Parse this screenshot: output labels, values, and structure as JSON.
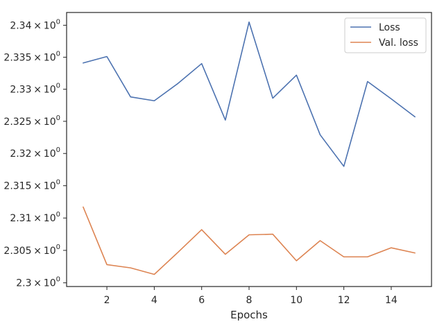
{
  "chart_data": {
    "type": "line",
    "title": "",
    "xlabel": "Epochs",
    "ylabel": "",
    "xlim": [
      0.3,
      15.7
    ],
    "ylim": [
      2.29943,
      2.342
    ],
    "y_scale": "log",
    "xticks": [
      2,
      4,
      6,
      8,
      10,
      12,
      14
    ],
    "xtick_labels": [
      "2",
      "4",
      "6",
      "8",
      "10",
      "12",
      "14"
    ],
    "yticks": [
      2.3,
      2.305,
      2.31,
      2.315,
      2.32,
      2.325,
      2.33,
      2.335,
      2.34
    ],
    "ytick_mantissas": [
      "2.3",
      "2.305",
      "2.31",
      "2.315",
      "2.32",
      "2.325",
      "2.33",
      "2.335",
      "2.34"
    ],
    "ytick_base": "10",
    "ytick_exponent": "0",
    "grid": false,
    "legend_position": "top-right",
    "x": [
      1,
      2,
      3,
      4,
      5,
      6,
      7,
      8,
      9,
      10,
      11,
      12,
      13,
      14,
      15
    ],
    "series": [
      {
        "name": "Loss",
        "color": "#4c72b0",
        "values": [
          2.3341,
          2.3351,
          2.3288,
          2.3282,
          2.3309,
          2.334,
          2.3252,
          2.3405,
          2.3286,
          2.3322,
          2.3229,
          2.318,
          2.3312,
          2.3285,
          2.3257
        ]
      },
      {
        "name": "Val. loss",
        "color": "#dd8452",
        "values": [
          2.3117,
          2.3028,
          2.3023,
          2.3013,
          2.3047,
          2.3082,
          2.3044,
          2.3074,
          2.3075,
          2.3034,
          2.3065,
          2.304,
          2.304,
          2.3054,
          2.3046
        ]
      }
    ]
  }
}
